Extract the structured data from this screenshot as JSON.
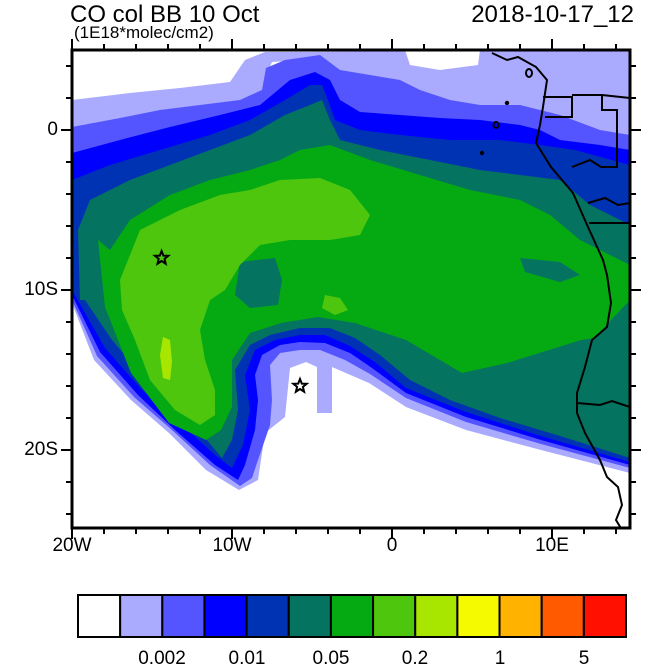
{
  "header": {
    "title": "CO col BB 10 Oct",
    "units": "(1E18*molec/cm2)",
    "timestamp": "2018-10-17_12"
  },
  "map": {
    "lon_range": [
      -20,
      15
    ],
    "lat_range": [
      -25,
      5
    ],
    "lon_labels": [
      {
        "lon": -20,
        "label": "20W"
      },
      {
        "lon": -10,
        "label": "10W"
      },
      {
        "lon": 0,
        "label": "0"
      },
      {
        "lon": 10,
        "label": "10E"
      }
    ],
    "lat_labels": [
      {
        "lat": 0,
        "label": "0"
      },
      {
        "lat": -10,
        "label": "10S"
      },
      {
        "lat": -20,
        "label": "20S"
      }
    ],
    "markers": [
      {
        "type": "star",
        "lon": -14.4,
        "lat": -8.0
      },
      {
        "type": "star",
        "lon": -5.75,
        "lat": -16.0
      }
    ]
  },
  "colorbar": {
    "colors": [
      "#ffffff",
      "#aaaaff",
      "#5555ff",
      "#0000ff",
      "#0033b3",
      "#04735f",
      "#05aa12",
      "#4fc60e",
      "#a8e600",
      "#f5fa00",
      "#ffb300",
      "#ff5a00",
      "#ff1000"
    ],
    "labels": [
      {
        "boundary": 2,
        "label": "0.002"
      },
      {
        "boundary": 4,
        "label": "0.01"
      },
      {
        "boundary": 6,
        "label": "0.05"
      },
      {
        "boundary": 8,
        "label": "0.2"
      },
      {
        "boundary": 10,
        "label": "1"
      },
      {
        "boundary": 12,
        "label": "5"
      }
    ]
  }
}
